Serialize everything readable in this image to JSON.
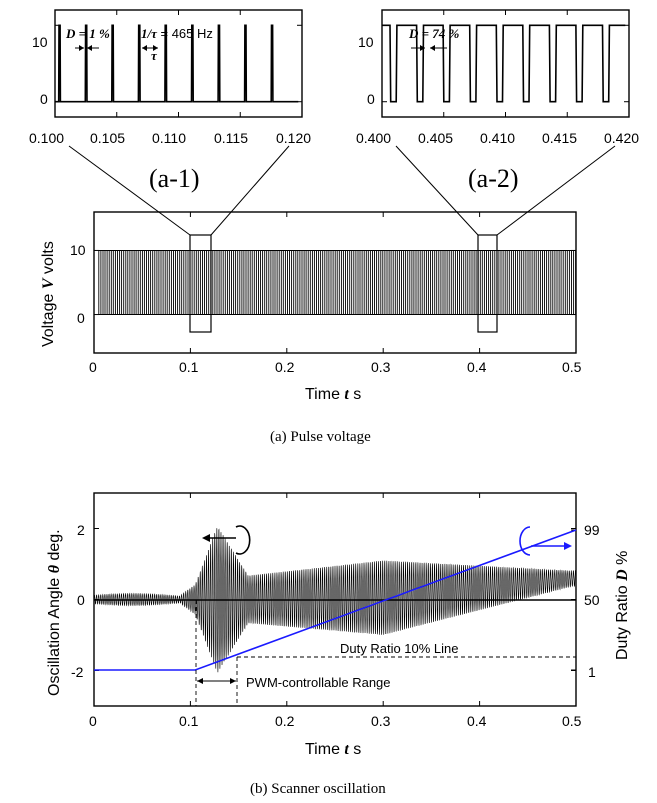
{
  "chart_data": [
    {
      "id": "a1",
      "type": "line",
      "panel_label": "(a-1)",
      "x_ticks": [
        "0.100",
        "0.105",
        "0.110",
        "0.115",
        "0.120"
      ],
      "xlim": [
        0.1,
        0.12
      ],
      "y_ticks": [
        "10",
        "0"
      ],
      "ylim": [
        -2,
        12
      ],
      "duty_ratio_percent": 1,
      "frequency_hz": 465,
      "annotations": {
        "duty": "D = 1 %",
        "freq_prefix": "1/τ",
        "freq_suffix": " = 465 Hz",
        "period": "τ"
      }
    },
    {
      "id": "a2",
      "type": "line",
      "panel_label": "(a-2)",
      "x_ticks": [
        "0.400",
        "0.405",
        "0.410",
        "0.415",
        "0.420"
      ],
      "xlim": [
        0.4,
        0.42
      ],
      "y_ticks": [
        "10",
        "0"
      ],
      "ylim": [
        -2,
        12
      ],
      "duty_ratio_percent": 74,
      "annotations": {
        "duty": "D = 74 %"
      }
    },
    {
      "id": "a",
      "type": "line",
      "caption": "(a) Pulse voltage",
      "xlabel": {
        "prefix": "Time ",
        "symbol": "t",
        "unit": " s"
      },
      "ylabel": {
        "prefix": "Voltage ",
        "symbol": "V",
        "unit": " volts"
      },
      "x_ticks": [
        "0",
        "0.1",
        "0.2",
        "0.3",
        "0.4",
        "0.5"
      ],
      "xlim": [
        0,
        0.5
      ],
      "y_ticks": [
        "10",
        "0"
      ],
      "ylim": [
        -6,
        16
      ],
      "high": 10,
      "low": 0,
      "zoom_windows": [
        [
          0.1,
          0.12
        ],
        [
          0.4,
          0.42
        ]
      ]
    },
    {
      "id": "b",
      "type": "line",
      "caption": "(b) Scanner oscillation",
      "xlabel": {
        "prefix": "Time ",
        "symbol": "t",
        "unit": " s"
      },
      "ylabel_left": {
        "prefix": "Oscillation Angle ",
        "symbol": "θ",
        "unit": " deg."
      },
      "ylabel_right": {
        "prefix": "Duty Ratio ",
        "symbol": "D",
        "unit": " %"
      },
      "x_ticks": [
        "0",
        "0.1",
        "0.2",
        "0.3",
        "0.4",
        "0.5"
      ],
      "xlim": [
        0,
        0.5
      ],
      "y_ticks_left": [
        "2",
        "0",
        "-2"
      ],
      "ylim_left": [
        -3,
        3
      ],
      "y_ticks_right": [
        "99",
        "50",
        "1"
      ],
      "series": [
        {
          "name": "Oscillation Angle",
          "color": "#000000"
        },
        {
          "name": "Duty Ratio",
          "color": "#1a1aff",
          "points": [
            [
              0,
              1
            ],
            [
              0.105,
              1
            ],
            [
              0.5,
              99
            ]
          ]
        }
      ],
      "annotations": {
        "duty_line": "Duty Ratio 10% Line",
        "range": "PWM-controllable Range",
        "range_x": [
          0.105,
          0.148
        ],
        "duty_line_value_deg": -1.6
      }
    }
  ]
}
